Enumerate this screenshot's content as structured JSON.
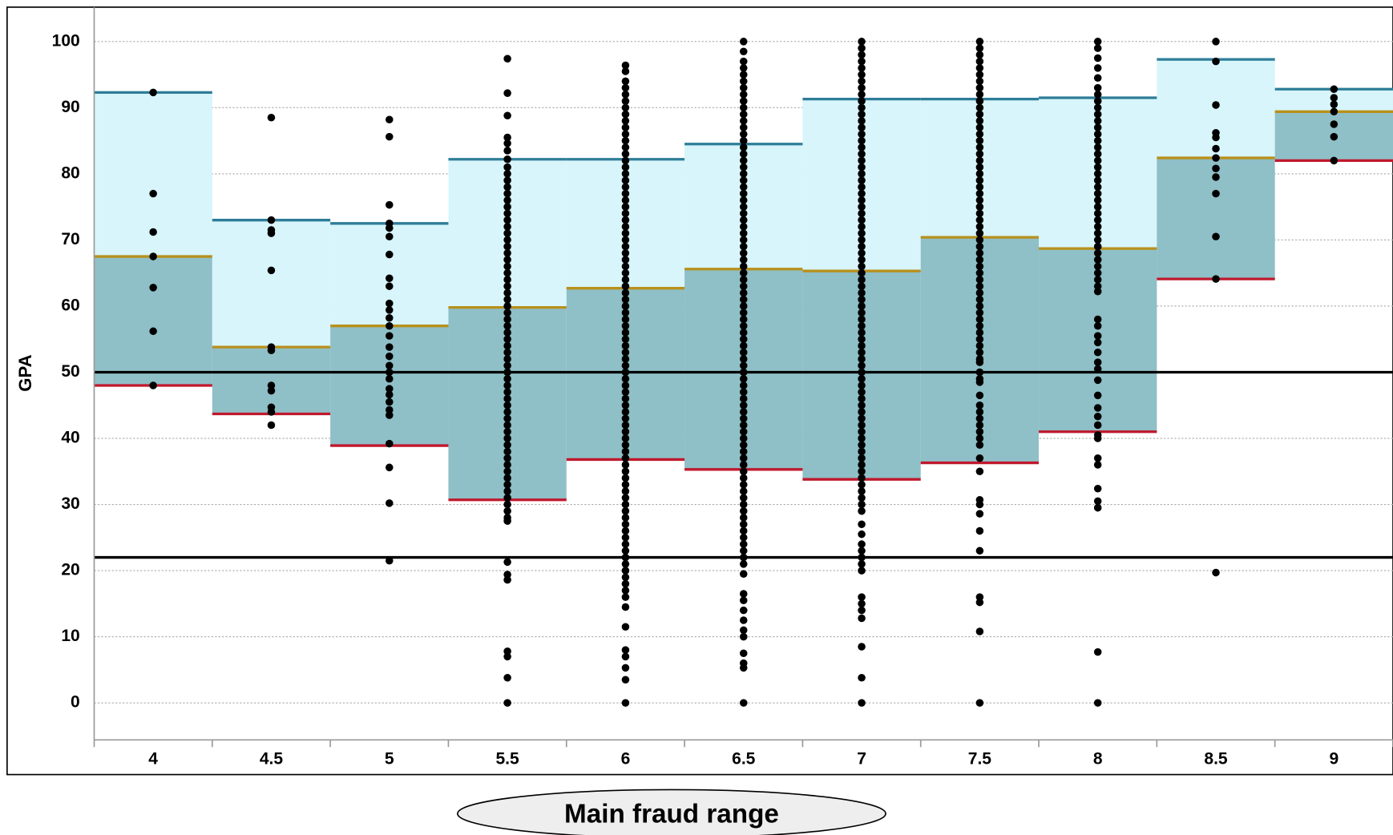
{
  "chart_data": {
    "type": "strip",
    "y_label": "GPA",
    "annotation": "Main fraud range",
    "categories": [
      "4",
      "4.5",
      "5",
      "5.5",
      "6",
      "6.5",
      "7",
      "7.5",
      "8",
      "8.5",
      "9"
    ],
    "p90": [
      92.3,
      73,
      72.5,
      82.2,
      82.2,
      84.5,
      91.3,
      91.3,
      91.5,
      97.3,
      92.8
    ],
    "median": [
      67.5,
      53.8,
      57,
      59.8,
      62.7,
      65.6,
      65.3,
      70.4,
      68.7,
      82.4,
      89.4
    ],
    "p10": [
      48,
      43.7,
      38.9,
      30.7,
      36.8,
      35.3,
      33.8,
      36.3,
      41,
      64.1,
      82
    ],
    "reference_lines": [
      50,
      22
    ],
    "colors": {
      "upper_band": "#d7f5fa",
      "lower_band": "#8fbfc7",
      "p90": "#2e7d98",
      "median": "#b8901c",
      "p10": "#c0182d",
      "points": "#000000",
      "reference": "#000000"
    },
    "points": [
      [
        92.3,
        77,
        71.2,
        67.5,
        62.8,
        56.2,
        48
      ],
      [
        88.5,
        73,
        71.5,
        71,
        65.4,
        53.8,
        53.3,
        48,
        47.2,
        44.7,
        44,
        42
      ],
      [
        88.2,
        85.6,
        75.3,
        72.5,
        71.8,
        70.5,
        67.8,
        64.2,
        63,
        60.4,
        59.4,
        58.2,
        57,
        55.5,
        53.8,
        52.4,
        51,
        50,
        49,
        47.5,
        46.6,
        45.5,
        44.3,
        43.5,
        39.2,
        35.6,
        30.2,
        21.5
      ],
      [
        97.4,
        92.2,
        88.8,
        85.5,
        84.6,
        83.5,
        82.2,
        81,
        80,
        79,
        78,
        77,
        76,
        75,
        74,
        73,
        72,
        71,
        70,
        69,
        68,
        67,
        66,
        65,
        64,
        63,
        62,
        61,
        60,
        59,
        58,
        57,
        56,
        55,
        54,
        53,
        52,
        51,
        50,
        49,
        48,
        47,
        46,
        45,
        44,
        43,
        42,
        41,
        40,
        39,
        38,
        37,
        36,
        35,
        34,
        33,
        32,
        31,
        30,
        29,
        28,
        27.5,
        21.3,
        19.4,
        18.6,
        7.8,
        7,
        3.8,
        0
      ],
      [
        96.4,
        95.5,
        94,
        93,
        92,
        91,
        90,
        89,
        88,
        87,
        86,
        85,
        84,
        83,
        82,
        81,
        80,
        79,
        78,
        77,
        76,
        75,
        74,
        73,
        72,
        71,
        70,
        69,
        68,
        67,
        66,
        65,
        64,
        63,
        62,
        61,
        60,
        59,
        58,
        57,
        56,
        55,
        54,
        53,
        52,
        51,
        50,
        49,
        48,
        47,
        46,
        45,
        44,
        43,
        42,
        41,
        40,
        39,
        38,
        37,
        36,
        35,
        34,
        33,
        32,
        31,
        30,
        29,
        28,
        27,
        26,
        25,
        24,
        23,
        22,
        21,
        20,
        19,
        18,
        17,
        16,
        14.5,
        11.5,
        8,
        7,
        5.3,
        3.5,
        0
      ],
      [
        100,
        98.5,
        97,
        96,
        95,
        94,
        93,
        92,
        91,
        90,
        89,
        88,
        87,
        86,
        85,
        84,
        83,
        82,
        81,
        80,
        79,
        78,
        77,
        76,
        75,
        74,
        73,
        72,
        71,
        70,
        69,
        68,
        67,
        66,
        65,
        64,
        63,
        62,
        61,
        60,
        59,
        58,
        57,
        56,
        55,
        54,
        53,
        52,
        51,
        50,
        49,
        48,
        47,
        46,
        45,
        44,
        43,
        42,
        41,
        40,
        39,
        38,
        37,
        36,
        35,
        34,
        33,
        32,
        31,
        30,
        29,
        28,
        27,
        26,
        25,
        24,
        23,
        22,
        21,
        19.5,
        16.5,
        15.5,
        14,
        12.5,
        11,
        10,
        7.5,
        6,
        5.3,
        0
      ],
      [
        100,
        99,
        98,
        97,
        96,
        95,
        94,
        93,
        92,
        91,
        90,
        89,
        88,
        87,
        86,
        85,
        84,
        83,
        82,
        81,
        80,
        79,
        78,
        77,
        76,
        75,
        74,
        73,
        72,
        71,
        70,
        69,
        68,
        67,
        66,
        65,
        64,
        63,
        62,
        61,
        60,
        59,
        58,
        57,
        56,
        55,
        54,
        53,
        52,
        51,
        50,
        49,
        48,
        47,
        46,
        45,
        44,
        43,
        42,
        41,
        40,
        39,
        38,
        37,
        36,
        35,
        34,
        33,
        32,
        31,
        30,
        29,
        27,
        25.5,
        24,
        23,
        22,
        21,
        20,
        16,
        15,
        14,
        12.8,
        8.5,
        3.8,
        0
      ],
      [
        100,
        99,
        98,
        97,
        96,
        95,
        94,
        93,
        92,
        91,
        90,
        89,
        88,
        87,
        86,
        85,
        84,
        83,
        82,
        81,
        80,
        79,
        78,
        77,
        76,
        75,
        74,
        73,
        72,
        71,
        70,
        69,
        68,
        67,
        66,
        65,
        64,
        63,
        62,
        61,
        60,
        59,
        58,
        57,
        56,
        55,
        54,
        53,
        52,
        51.5,
        50,
        49,
        48.5,
        46.5,
        45,
        44,
        43,
        42,
        41,
        40,
        39,
        37,
        35,
        30.7,
        30,
        28.6,
        26,
        23,
        16,
        15.2,
        10.8,
        0
      ],
      [
        100,
        99,
        97.5,
        96,
        94.5,
        93,
        92,
        91,
        90,
        89,
        88,
        87,
        86,
        85,
        84,
        83,
        82,
        81,
        80,
        79,
        78,
        77,
        76,
        75,
        74,
        73,
        72,
        71,
        70,
        69,
        68,
        67,
        66,
        65,
        64,
        63,
        62.2,
        58,
        57,
        55.5,
        54.5,
        53,
        51.5,
        50.5,
        48.8,
        46.5,
        44.6,
        43.3,
        42,
        40.5,
        40,
        37,
        36,
        32.4,
        30.5,
        29.5,
        7.7,
        0
      ],
      [
        100,
        97,
        90.4,
        86.2,
        85.5,
        83.8,
        82.4,
        80.8,
        79.5,
        77,
        70.5,
        64.1,
        19.7
      ],
      [
        92.8,
        91.5,
        90.5,
        89.4,
        87.5,
        85.6,
        82
      ]
    ],
    "ylim": [
      -5.6,
      105.2
    ],
    "yticks": [
      0,
      10,
      20,
      30,
      40,
      50,
      60,
      70,
      80,
      90,
      100
    ],
    "grid": true
  }
}
